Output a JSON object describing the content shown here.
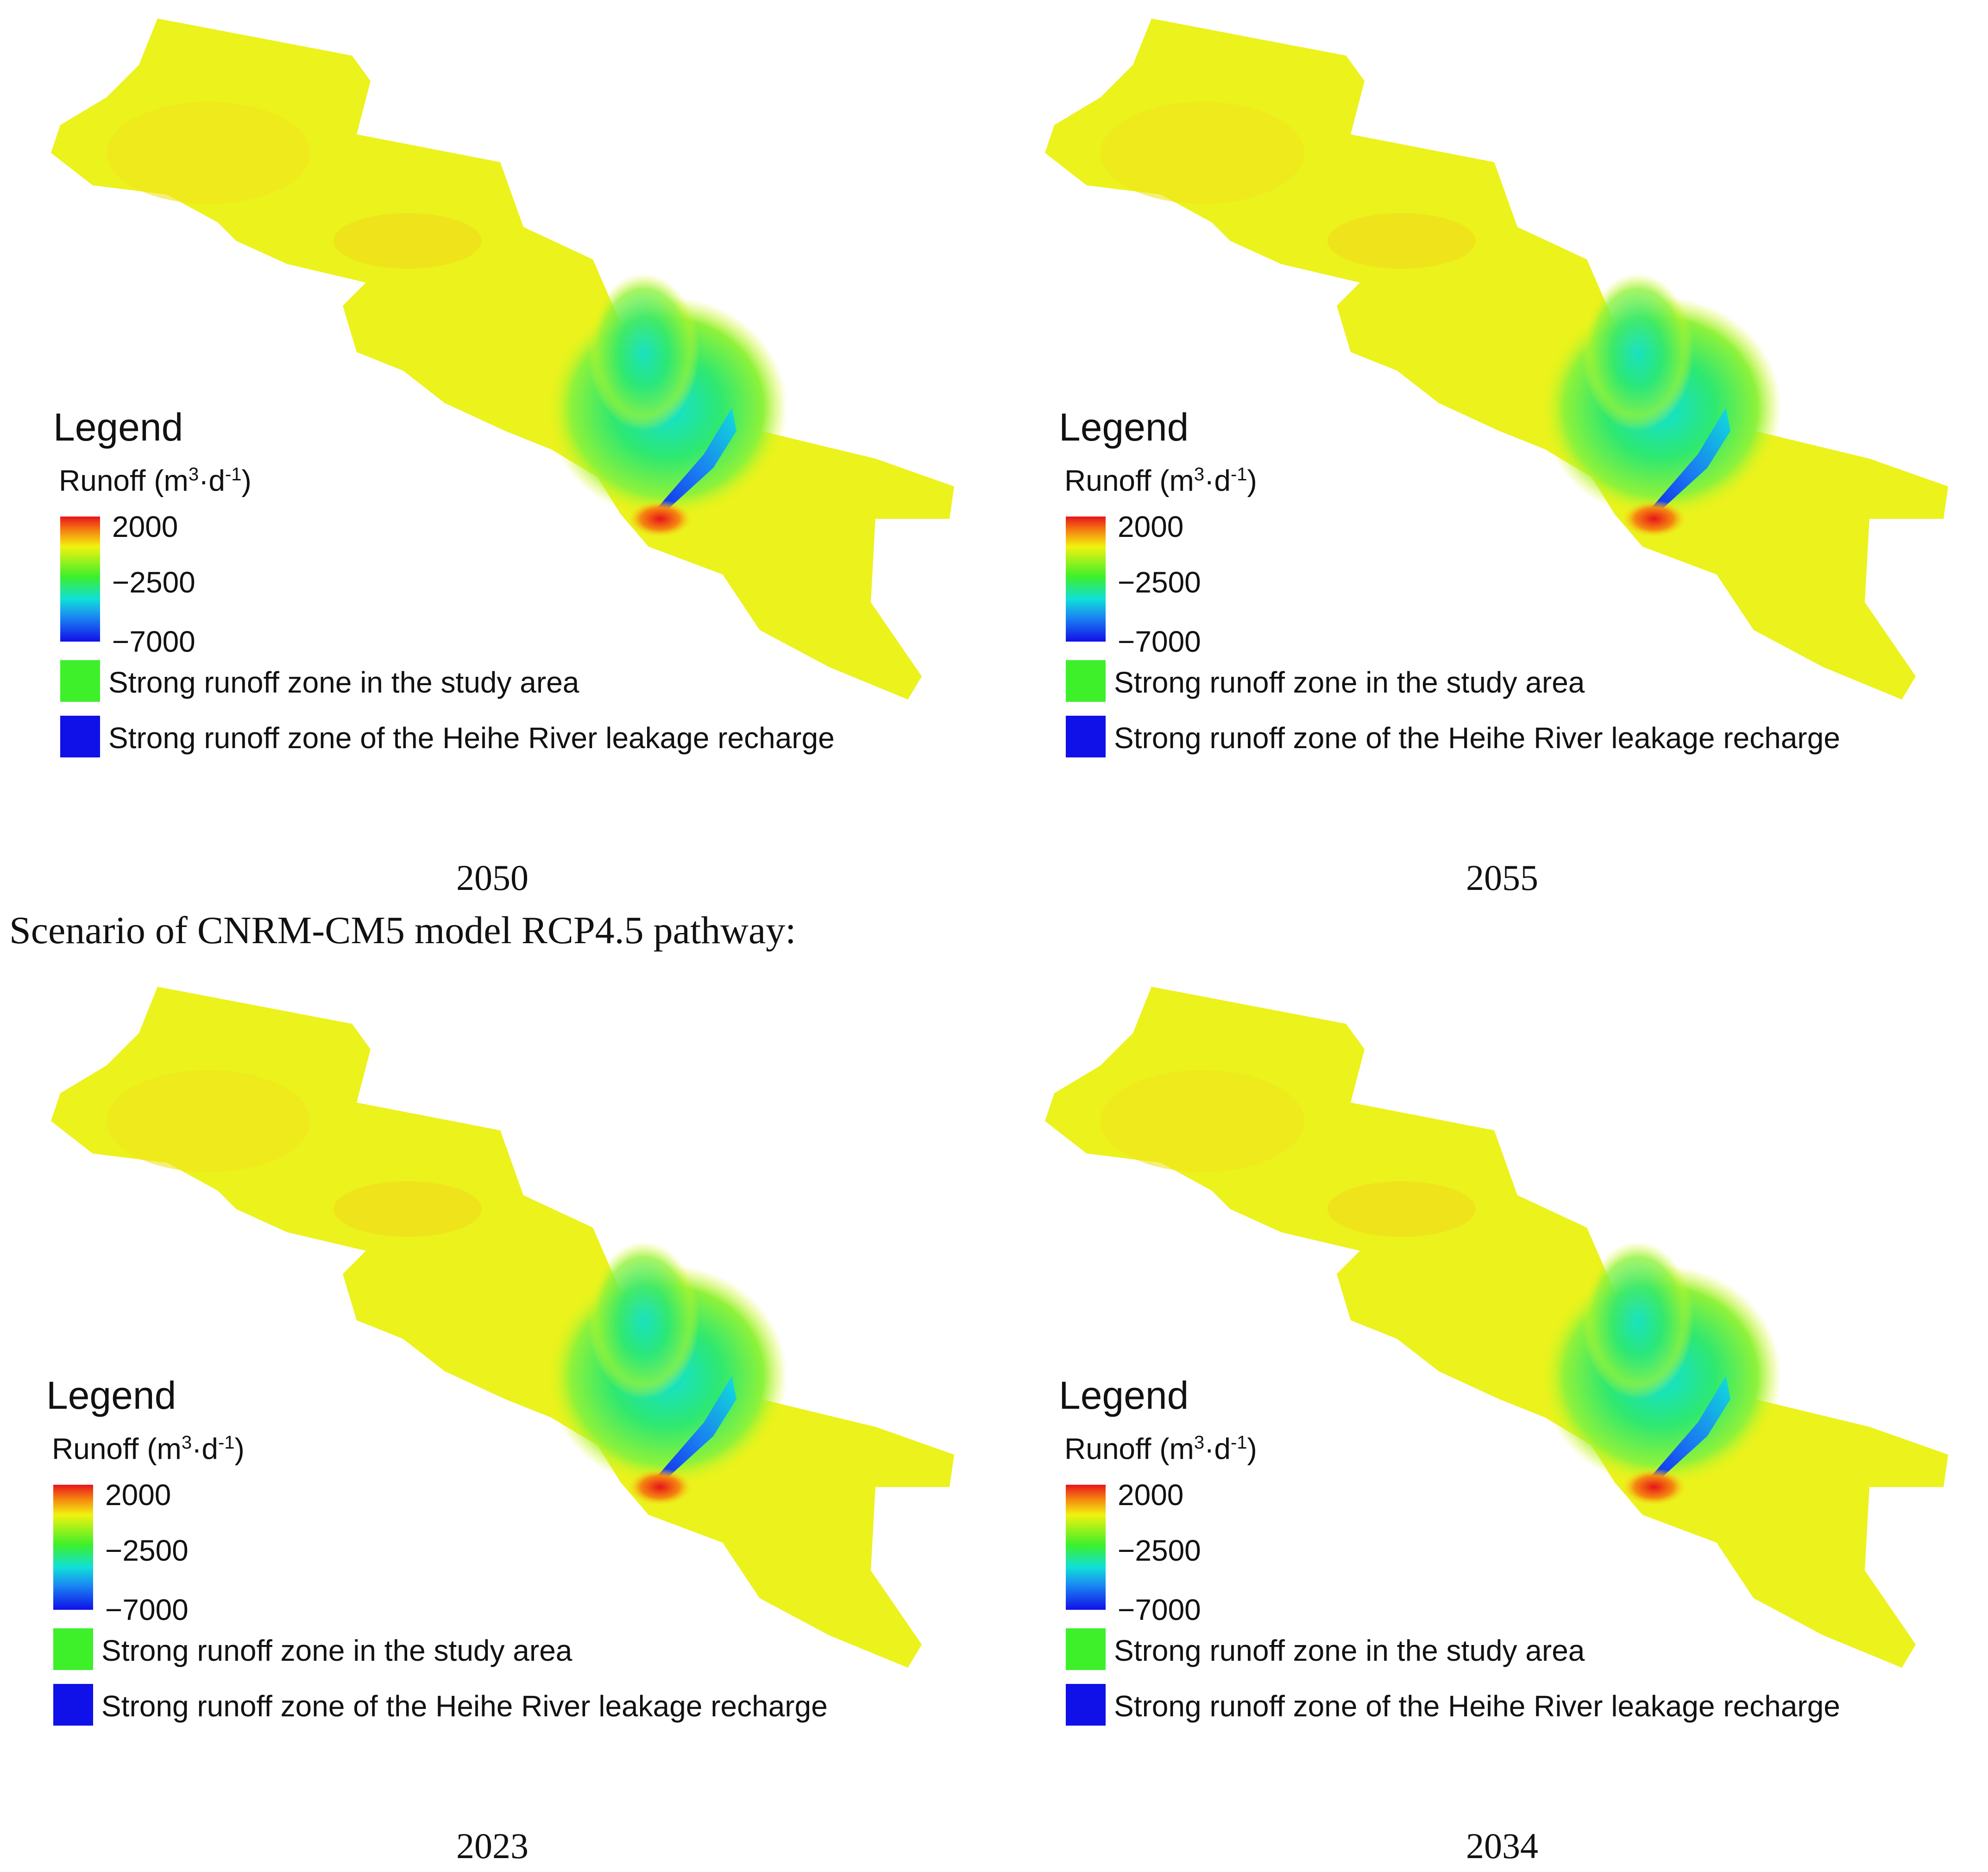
{
  "scenario_caption": "Scenario of CNRM-CM5 model RCP4.5 pathway:",
  "legend": {
    "title": "Legend",
    "variable_name": "Runoff (m",
    "variable_unit_mid": "·d",
    "sup_1": "3",
    "sup_2": "-1",
    "variable_close": ")",
    "ramp_max": "2000",
    "ramp_mid": "−2500",
    "ramp_min": "−7000",
    "ramp_colors": [
      "#e8141a",
      "#f58a10",
      "#f2f20f",
      "#3df02a",
      "#10e0d8",
      "#1a8af2",
      "#1010e8"
    ],
    "swatch_green_label": "Strong runoff zone in the study area",
    "swatch_green_color": "#3df02a",
    "swatch_blue_label": "Strong runoff zone of the Heihe River leakage recharge",
    "swatch_blue_color": "#1010e8"
  },
  "panels": [
    {
      "year": "2050"
    },
    {
      "year": "2055"
    },
    {
      "year": "2023"
    },
    {
      "year": "2034"
    }
  ]
}
